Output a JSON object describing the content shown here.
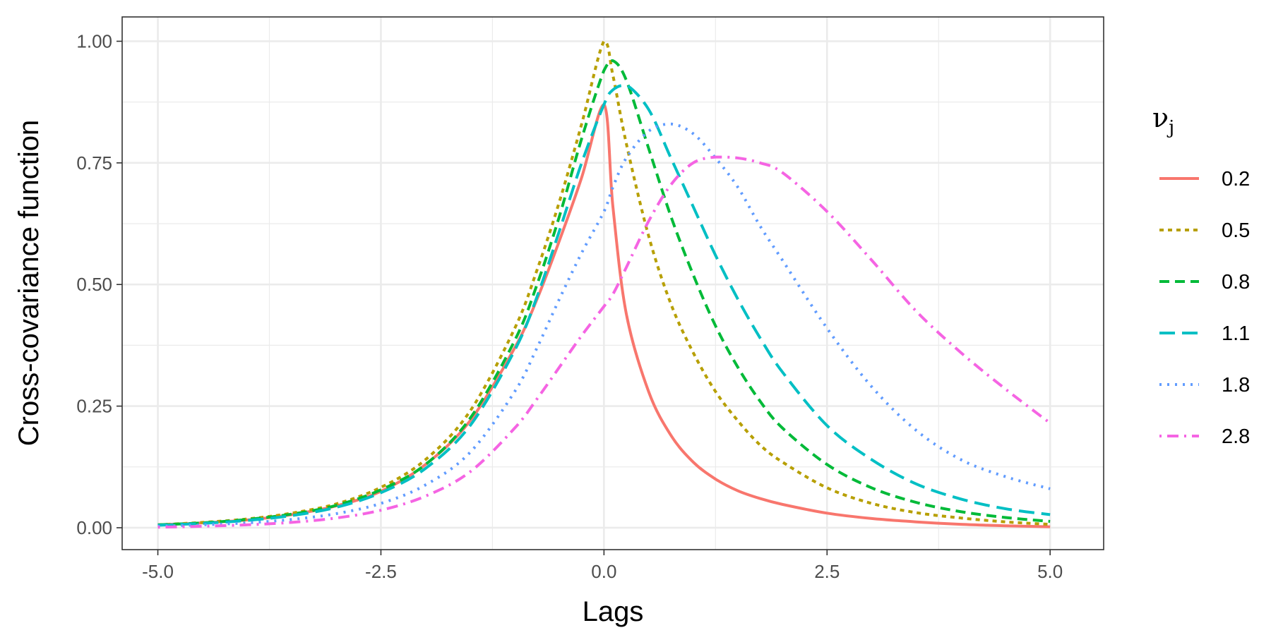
{
  "chart_data": {
    "type": "line",
    "xlabel": "Lags",
    "ylabel": "Cross-covariance function",
    "xlim": [
      -5.0,
      5.0
    ],
    "ylim": [
      0.0,
      1.0
    ],
    "x_ticks": [
      "-5.0",
      "-2.5",
      "0.0",
      "2.5",
      "5.0"
    ],
    "y_ticks": [
      "0.00",
      "0.25",
      "0.50",
      "0.75",
      "1.00"
    ],
    "grid": true,
    "legend": {
      "title": "ν",
      "title_subscript": "j",
      "position": "right"
    },
    "x": [
      -5.0,
      -4.5,
      -4.0,
      -3.5,
      -3.0,
      -2.5,
      -2.0,
      -1.5,
      -1.0,
      -0.75,
      -0.5,
      -0.25,
      0.0,
      0.1,
      0.25,
      0.5,
      0.75,
      1.0,
      1.25,
      1.5,
      1.75,
      2.0,
      2.5,
      3.0,
      3.5,
      4.0,
      4.5,
      5.0
    ],
    "series": [
      {
        "name": "0.2",
        "color": "#F8766D",
        "dash": "solid",
        "values": [
          0.006,
          0.01,
          0.016,
          0.027,
          0.045,
          0.075,
          0.13,
          0.22,
          0.37,
          0.47,
          0.59,
          0.72,
          0.87,
          0.66,
          0.44,
          0.28,
          0.19,
          0.135,
          0.1,
          0.076,
          0.06,
          0.048,
          0.03,
          0.019,
          0.012,
          0.007,
          0.004,
          0.002
        ]
      },
      {
        "name": "0.5",
        "color": "#B79F00",
        "dash": "short",
        "values": [
          0.006,
          0.011,
          0.018,
          0.03,
          0.049,
          0.083,
          0.14,
          0.24,
          0.41,
          0.53,
          0.67,
          0.83,
          1.0,
          0.93,
          0.79,
          0.6,
          0.46,
          0.36,
          0.28,
          0.22,
          0.17,
          0.135,
          0.082,
          0.05,
          0.031,
          0.02,
          0.012,
          0.007
        ]
      },
      {
        "name": "0.8",
        "color": "#00BA38",
        "dash": "dash",
        "values": [
          0.006,
          0.01,
          0.017,
          0.028,
          0.046,
          0.078,
          0.13,
          0.225,
          0.385,
          0.5,
          0.64,
          0.8,
          0.94,
          0.96,
          0.92,
          0.78,
          0.64,
          0.52,
          0.415,
          0.33,
          0.26,
          0.205,
          0.13,
          0.082,
          0.052,
          0.033,
          0.021,
          0.013
        ]
      },
      {
        "name": "1.1",
        "color": "#00BFC4",
        "dash": "longdash",
        "values": [
          0.005,
          0.009,
          0.015,
          0.025,
          0.042,
          0.072,
          0.122,
          0.21,
          0.365,
          0.475,
          0.61,
          0.75,
          0.87,
          0.9,
          0.91,
          0.86,
          0.76,
          0.66,
          0.56,
          0.47,
          0.39,
          0.32,
          0.21,
          0.14,
          0.09,
          0.059,
          0.039,
          0.027
        ]
      },
      {
        "name": "1.8",
        "color": "#619CFF",
        "dash": "dotted",
        "values": [
          0.003,
          0.006,
          0.01,
          0.017,
          0.029,
          0.05,
          0.088,
          0.155,
          0.28,
          0.37,
          0.47,
          0.565,
          0.65,
          0.7,
          0.76,
          0.815,
          0.83,
          0.81,
          0.76,
          0.7,
          0.62,
          0.55,
          0.41,
          0.29,
          0.2,
          0.14,
          0.105,
          0.08
        ]
      },
      {
        "name": "2.8",
        "color": "#F564E3",
        "dash": "dotdash",
        "values": [
          0.001,
          0.003,
          0.006,
          0.011,
          0.02,
          0.036,
          0.065,
          0.115,
          0.205,
          0.265,
          0.33,
          0.395,
          0.455,
          0.48,
          0.535,
          0.63,
          0.705,
          0.75,
          0.762,
          0.76,
          0.75,
          0.73,
          0.65,
          0.55,
          0.445,
          0.36,
          0.285,
          0.215
        ]
      }
    ]
  }
}
